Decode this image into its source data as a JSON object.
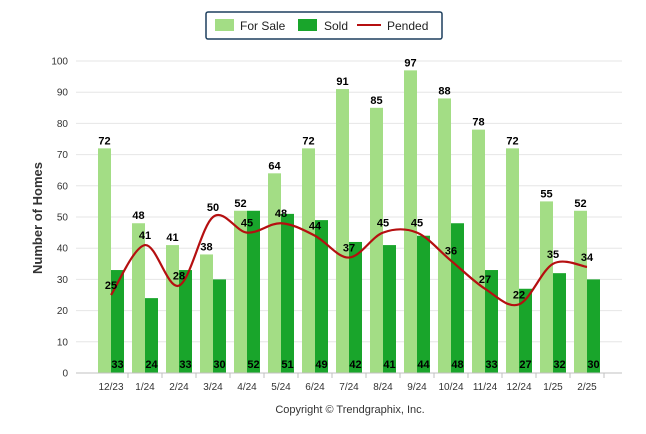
{
  "chart_data": {
    "type": "bar",
    "categories": [
      "12/23",
      "1/24",
      "2/24",
      "3/24",
      "4/24",
      "5/24",
      "6/24",
      "7/24",
      "8/24",
      "9/24",
      "10/24",
      "11/24",
      "12/24",
      "1/25",
      "2/25"
    ],
    "series": [
      {
        "name": "For Sale",
        "type": "bar",
        "color": "#a3dd85",
        "values": [
          72,
          48,
          41,
          38,
          52,
          64,
          72,
          91,
          85,
          97,
          88,
          78,
          72,
          55,
          52
        ]
      },
      {
        "name": "Sold",
        "type": "bar",
        "color": "#19a52b",
        "values": [
          33,
          24,
          33,
          30,
          52,
          51,
          49,
          42,
          41,
          44,
          48,
          33,
          27,
          32,
          30
        ]
      },
      {
        "name": "Pended",
        "type": "line",
        "color": "#b50f10",
        "values": [
          25,
          41,
          28,
          50,
          45,
          48,
          44,
          37,
          45,
          45,
          36,
          27,
          22,
          35,
          34
        ]
      }
    ],
    "ylabel": "Number of Homes",
    "ylim": [
      0,
      100
    ],
    "yticks": [
      0,
      10,
      20,
      30,
      40,
      50,
      60,
      70,
      80,
      90,
      100
    ],
    "grid": true,
    "legend_position": "top-center"
  },
  "footer": {
    "copyright": "Copyright © Trendgraphix, Inc."
  }
}
